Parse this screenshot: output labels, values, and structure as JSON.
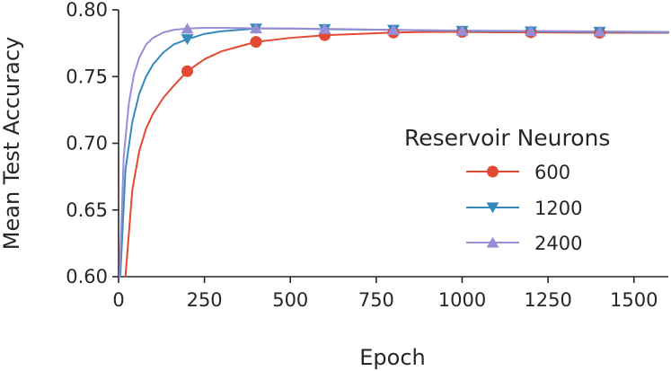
{
  "chart_data": {
    "type": "line",
    "title": "",
    "xlabel": "Epoch",
    "ylabel": "Mean Test Accuracy",
    "xlim": [
      0,
      1600
    ],
    "ylim": [
      0.6,
      0.8
    ],
    "xticks": [
      0,
      250,
      500,
      750,
      1000,
      1250,
      1500
    ],
    "xtick_labels": [
      "0",
      "250",
      "500",
      "750",
      "1000",
      "1250",
      "1500"
    ],
    "yticks": [
      0.6,
      0.65,
      0.7,
      0.75,
      0.8
    ],
    "ytick_labels": [
      "0.60",
      "0.65",
      "0.70",
      "0.75",
      "0.80"
    ],
    "grid": false,
    "legend": {
      "title": "Reservoir Neurons",
      "position": "center-right"
    },
    "series": [
      {
        "name": "600",
        "color": "#E24A33",
        "marker": "circle",
        "x": [
          20,
          40,
          60,
          80,
          100,
          130,
          160,
          200,
          250,
          300,
          400,
          500,
          600,
          700,
          800,
          900,
          1000,
          1100,
          1200,
          1300,
          1400,
          1500,
          1600
        ],
        "y": [
          0.6,
          0.665,
          0.694,
          0.711,
          0.722,
          0.734,
          0.743,
          0.754,
          0.763,
          0.769,
          0.776,
          0.779,
          0.781,
          0.782,
          0.783,
          0.7835,
          0.7835,
          0.7832,
          0.7832,
          0.783,
          0.7828,
          0.7828,
          0.7828
        ],
        "marker_x": [
          200,
          400,
          600,
          800,
          1000,
          1200,
          1400
        ],
        "marker_y": [
          0.754,
          0.776,
          0.781,
          0.783,
          0.7835,
          0.7832,
          0.7828
        ]
      },
      {
        "name": "1200",
        "color": "#348ABD",
        "marker": "triangle-down",
        "x": [
          5,
          20,
          40,
          60,
          80,
          100,
          130,
          160,
          200,
          250,
          300,
          400,
          500,
          600,
          800,
          1000,
          1200,
          1400,
          1600
        ],
        "y": [
          0.6,
          0.68,
          0.716,
          0.737,
          0.75,
          0.759,
          0.768,
          0.774,
          0.778,
          0.782,
          0.784,
          0.786,
          0.786,
          0.7855,
          0.785,
          0.7842,
          0.7838,
          0.7835,
          0.7832
        ],
        "marker_x": [
          200,
          400,
          600,
          800,
          1000,
          1200,
          1400
        ],
        "marker_y": [
          0.778,
          0.786,
          0.7855,
          0.785,
          0.7842,
          0.7838,
          0.7835
        ]
      },
      {
        "name": "2400",
        "color": "#988ED5",
        "marker": "triangle-up",
        "x": [
          3,
          15,
          30,
          45,
          60,
          80,
          100,
          130,
          160,
          200,
          250,
          300,
          400,
          500,
          600,
          800,
          1000,
          1200,
          1400,
          1600
        ],
        "y": [
          0.6,
          0.69,
          0.73,
          0.752,
          0.764,
          0.774,
          0.779,
          0.783,
          0.785,
          0.786,
          0.7865,
          0.7865,
          0.7862,
          0.786,
          0.7858,
          0.785,
          0.7845,
          0.7842,
          0.7838,
          0.7835
        ],
        "marker_x": [
          200,
          400,
          600,
          800,
          1000,
          1200,
          1400
        ],
        "marker_y": [
          0.786,
          0.7862,
          0.7858,
          0.785,
          0.7845,
          0.7842,
          0.7838
        ]
      }
    ]
  }
}
